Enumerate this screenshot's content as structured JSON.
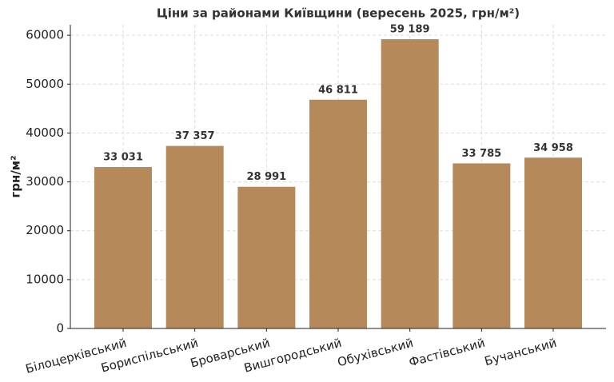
{
  "chart_data": {
    "type": "bar",
    "title": "Ціни за районами Київщини (вересень 2025, грн/м²)",
    "ylabel": "грн/м²",
    "categories": [
      "Білоцерківський",
      "Бориспільський",
      "Броварський",
      "Вишгородський",
      "Обухівський",
      "Фастівський",
      "Бучанський"
    ],
    "values": [
      33031,
      37357,
      28991,
      46811,
      59189,
      33785,
      34958
    ],
    "value_labels": [
      "33 031",
      "37 357",
      "28 991",
      "46 811",
      "59 189",
      "33 785",
      "34 958"
    ],
    "color": "#b5895a",
    "ylim": [
      0,
      62148
    ],
    "yticks": [
      0,
      10000,
      20000,
      30000,
      40000,
      50000,
      60000
    ],
    "grid": true
  }
}
